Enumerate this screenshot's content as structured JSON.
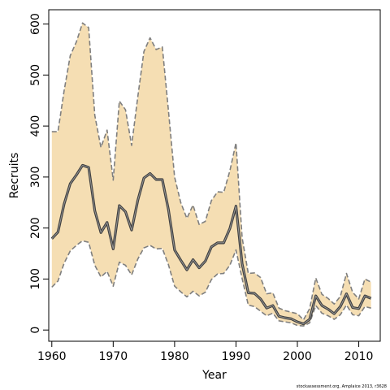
{
  "chart_data": {
    "type": "line",
    "title": "",
    "xlabel": "Year",
    "ylabel": "Recruits",
    "xlim": [
      1959.5,
      2013.5
    ],
    "ylim": [
      -22,
      628
    ],
    "x_ticks": [
      1960,
      1970,
      1980,
      1990,
      2000,
      2010
    ],
    "y_ticks": [
      0,
      100,
      200,
      300,
      400,
      500,
      600
    ],
    "grid": false,
    "legend": "none",
    "colors": {
      "band": "#f5deb3",
      "bounds": "#7f7f7f",
      "line": "#404040"
    },
    "x": [
      1960,
      1961,
      1962,
      1963,
      1964,
      1965,
      1966,
      1967,
      1968,
      1969,
      1970,
      1971,
      1972,
      1973,
      1974,
      1975,
      1976,
      1977,
      1978,
      1979,
      1980,
      1981,
      1982,
      1983,
      1984,
      1985,
      1986,
      1987,
      1988,
      1989,
      1990,
      1991,
      1992,
      1993,
      1994,
      1995,
      1996,
      1997,
      1998,
      1999,
      2000,
      2001,
      2002,
      2003,
      2004,
      2005,
      2006,
      2007,
      2008,
      2009,
      2010,
      2011,
      2012
    ],
    "series": [
      {
        "role": "upper",
        "values": [
          389,
          389,
          469,
          538,
          565,
          602,
          593,
          421,
          358,
          392,
          294,
          449,
          432,
          362,
          457,
          546,
          573,
          550,
          555,
          430,
          300,
          250,
          219,
          245,
          207,
          213,
          254,
          271,
          270,
          312,
          367,
          181,
          111,
          112,
          103,
          71,
          73,
          43,
          38,
          35,
          32,
          20,
          42,
          102,
          70,
          62,
          51,
          66,
          111,
          74,
          61,
          100,
          94
        ]
      },
      {
        "role": "estimate",
        "values": [
          179,
          192,
          247,
          287,
          304,
          323,
          319,
          234,
          191,
          211,
          159,
          244,
          232,
          196,
          254,
          298,
          307,
          295,
          295,
          236,
          157,
          137,
          118,
          138,
          122,
          135,
          163,
          171,
          171,
          199,
          243,
          130,
          73,
          72,
          61,
          43,
          48,
          27,
          24,
          22,
          16,
          12,
          21,
          67,
          48,
          41,
          32,
          46,
          71,
          44,
          42,
          67,
          62
        ]
      },
      {
        "role": "lower",
        "values": [
          84,
          96,
          131,
          155,
          166,
          175,
          172,
          127,
          104,
          115,
          86,
          133,
          127,
          108,
          139,
          161,
          166,
          159,
          160,
          128,
          86,
          75,
          65,
          76,
          67,
          74,
          99,
          110,
          111,
          127,
          157,
          101,
          49,
          46,
          37,
          28,
          33,
          18,
          16,
          14,
          9,
          8,
          14,
          48,
          33,
          28,
          21,
          30,
          49,
          30,
          28,
          46,
          43
        ]
      }
    ],
    "credit": "stockassessment.org, Amplaice 2013, r3628"
  }
}
